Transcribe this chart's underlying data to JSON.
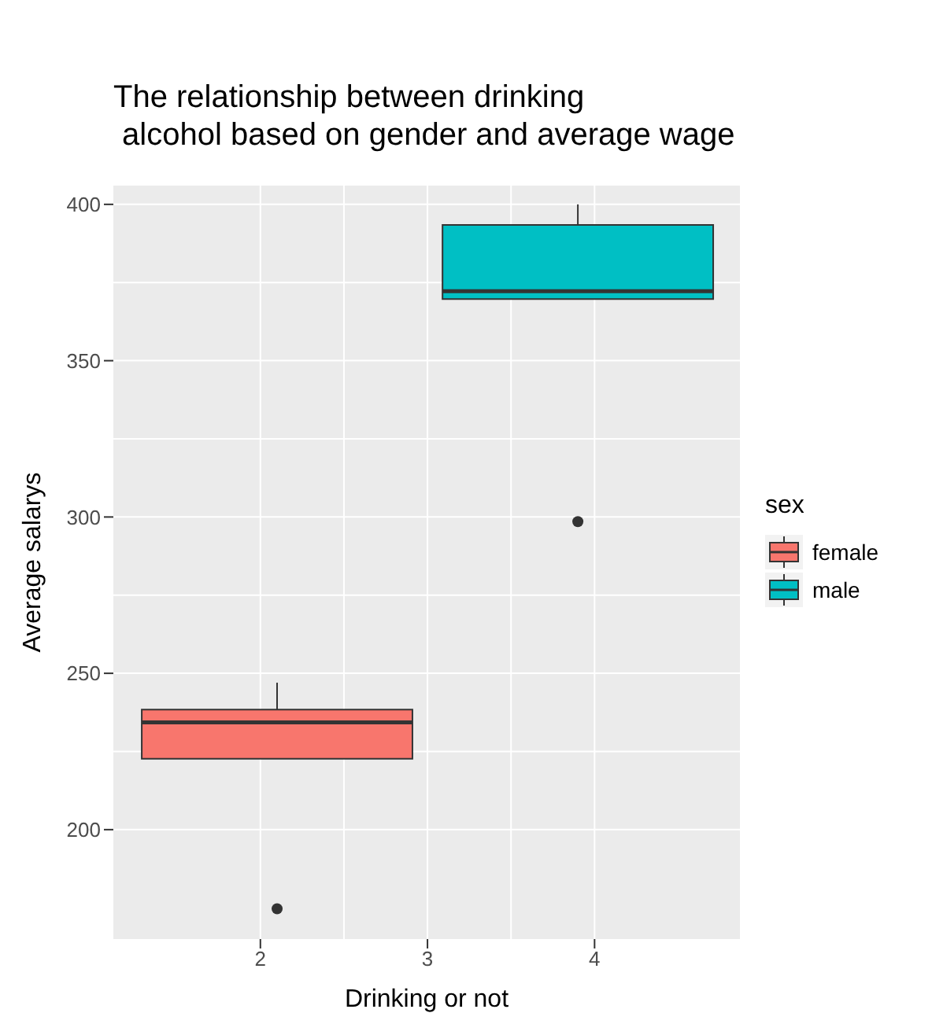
{
  "chart_data": {
    "type": "box",
    "title": "The relationship between drinking\n alcohol based on gender and average wage",
    "xlabel": "Drinking or not",
    "ylabel": "Average salarys",
    "legend_title": "sex",
    "x": [
      2.1,
      3.9
    ],
    "series": [
      {
        "name": "female",
        "color": "#f8766d",
        "boxes": [
          {
            "low": 222.7,
            "q1": 222.7,
            "median": 234.3,
            "q3": 238.4,
            "high": 247,
            "outliers": [
              174.7
            ]
          },
          null
        ]
      },
      {
        "name": "male",
        "color": "#00bfc4",
        "boxes": [
          null,
          {
            "low": 369.7,
            "q1": 369.7,
            "median": 372.2,
            "q3": 393.4,
            "high": 400,
            "outliers": [
              298.5
            ]
          }
        ]
      }
    ],
    "xlim": [
      1.12,
      4.87
    ],
    "xticks": [
      2,
      3,
      4
    ],
    "ylim": [
      165,
      406
    ],
    "yticks": [
      200,
      250,
      300,
      350,
      400
    ],
    "grid": true,
    "legend": "right"
  }
}
